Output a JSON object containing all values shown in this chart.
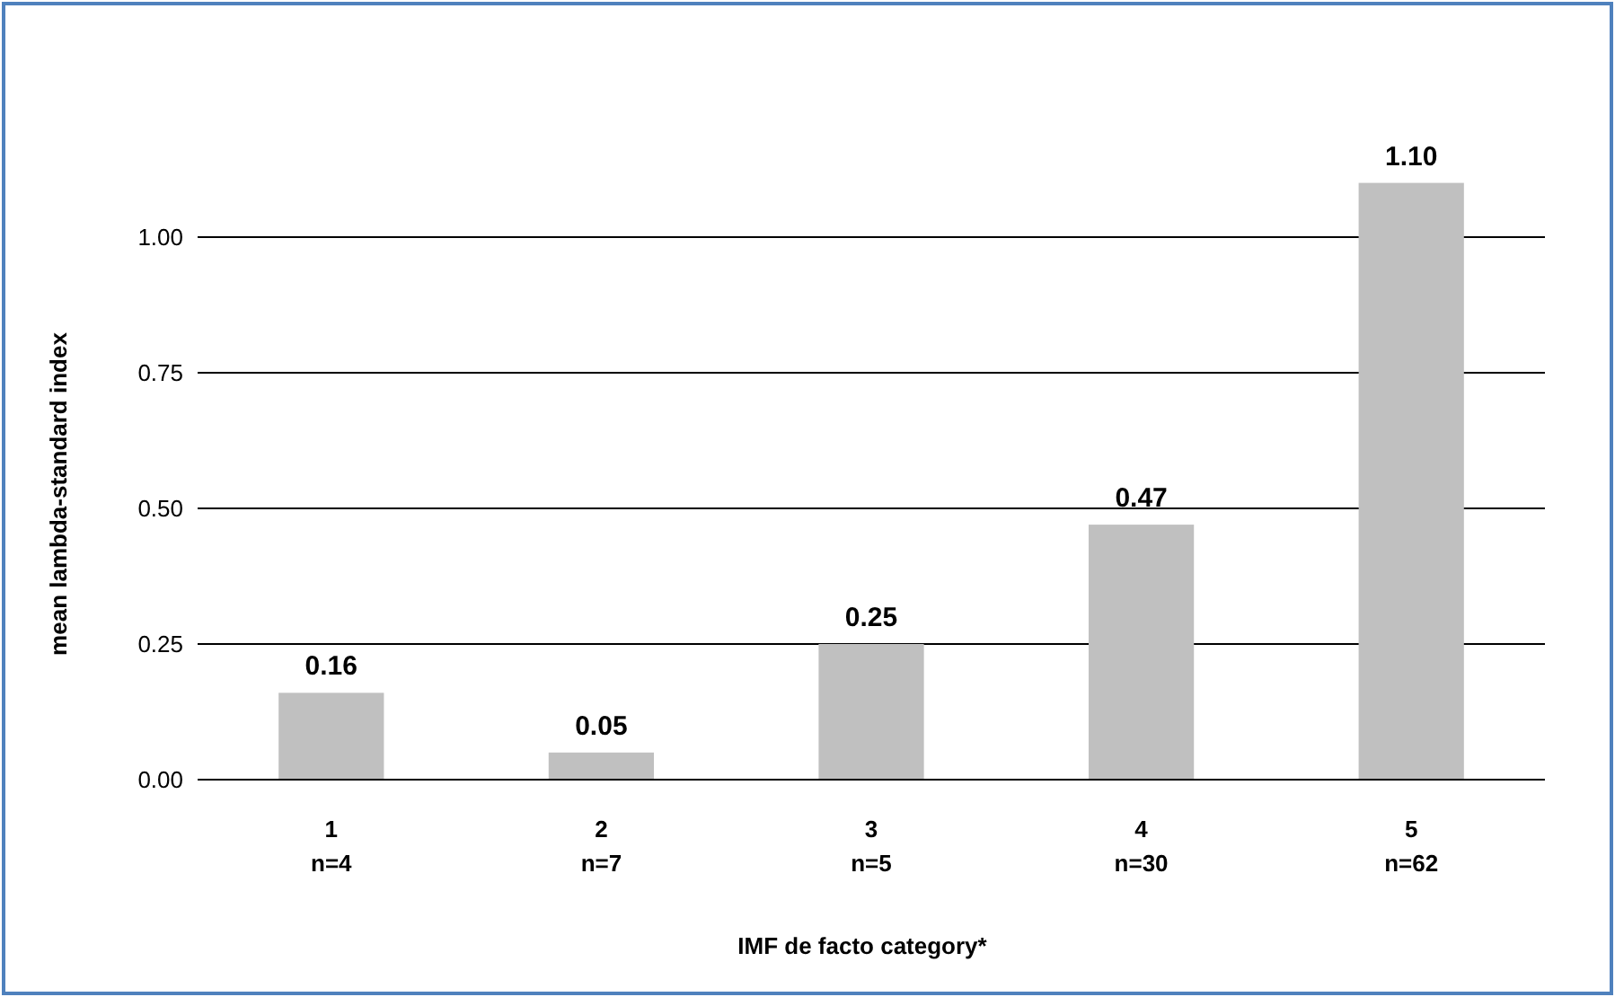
{
  "chart_data": {
    "type": "bar",
    "xlabel": "IMF de facto category*",
    "ylabel": "mean lambda-standard index",
    "categories": [
      "1\nn=4",
      "2\nn=7",
      "3\nn=5",
      "4\nn=30",
      "5\nn=62"
    ],
    "values": [
      0.16,
      0.05,
      0.25,
      0.47,
      1.1
    ],
    "value_labels": [
      "0.16",
      "0.05",
      "0.25",
      "0.47",
      "1.10"
    ],
    "color": "#c0c0c0",
    "ylim": [
      0,
      1.1
    ],
    "yticks": [
      {
        "value": 0,
        "label": "0.00"
      },
      {
        "value": 0.25,
        "label": "0.25"
      },
      {
        "value": 0.5,
        "label": "0.50"
      },
      {
        "value": 0.75,
        "label": "0.75"
      },
      {
        "value": 1,
        "label": "1.00"
      }
    ],
    "grid": "y"
  }
}
